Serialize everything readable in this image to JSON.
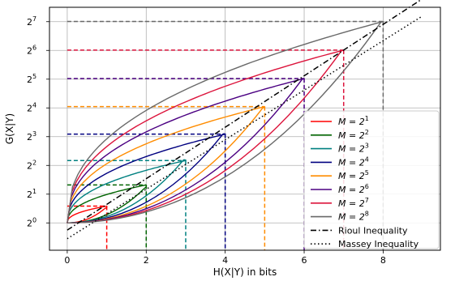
{
  "chart_data": {
    "type": "line",
    "xlabel": "H(X|Y) in bits",
    "ylabel": "G(X|Y)",
    "x_ticks": [
      "0",
      "2",
      "4",
      "6",
      "8"
    ],
    "y_ticks": [
      "2^0",
      "2^1",
      "2^2",
      "2^3",
      "2^4",
      "2^5",
      "2^6",
      "2^7"
    ],
    "xlim": [
      -0.45,
      9.45
    ],
    "ylim_log2": [
      -0.95,
      7.5
    ],
    "y_scale": "log2",
    "grid": true,
    "legend_position": "lower-right",
    "series": [
      {
        "name": "M = 2^1",
        "color": "#ff0000",
        "k": 1,
        "g_max": 1.5,
        "corner_log2": 0.5
      },
      {
        "name": "M = 2^2",
        "color": "#006400",
        "k": 2,
        "g_max": 2.5,
        "corner_log2": 1.2
      },
      {
        "name": "M = 2^3",
        "color": "#008080",
        "k": 3,
        "g_max": 4.5,
        "corner_log2": 2.2
      },
      {
        "name": "M = 2^4",
        "color": "#000080",
        "k": 4,
        "g_max": 8.5,
        "corner_log2": 3.1
      },
      {
        "name": "M = 2^5",
        "color": "#ff8c00",
        "k": 5,
        "g_max": 16.5,
        "corner_log2": 4.0
      },
      {
        "name": "M = 2^6",
        "color": "#4b0082",
        "k": 6,
        "g_max": 32.5,
        "corner_log2": 5.0
      },
      {
        "name": "M = 2^7",
        "color": "#dc143c",
        "k": 7,
        "g_max": 64.5,
        "corner_log2": 6.0
      },
      {
        "name": "M = 2^8",
        "color": "#696969",
        "k": 8,
        "g_max": 128.5,
        "corner_log2": 7.0
      }
    ],
    "bounds": [
      {
        "name": "Rioul Inequality",
        "style": "dashdot",
        "color": "#000000",
        "x": [
          0,
          9
        ],
        "log2_y": [
          -0.25,
          7.8
        ]
      },
      {
        "name": "Massey Inequality",
        "style": "dotted",
        "color": "#000000",
        "x": [
          0,
          9
        ],
        "log2_y": [
          -0.55,
          7.2
        ]
      }
    ]
  }
}
